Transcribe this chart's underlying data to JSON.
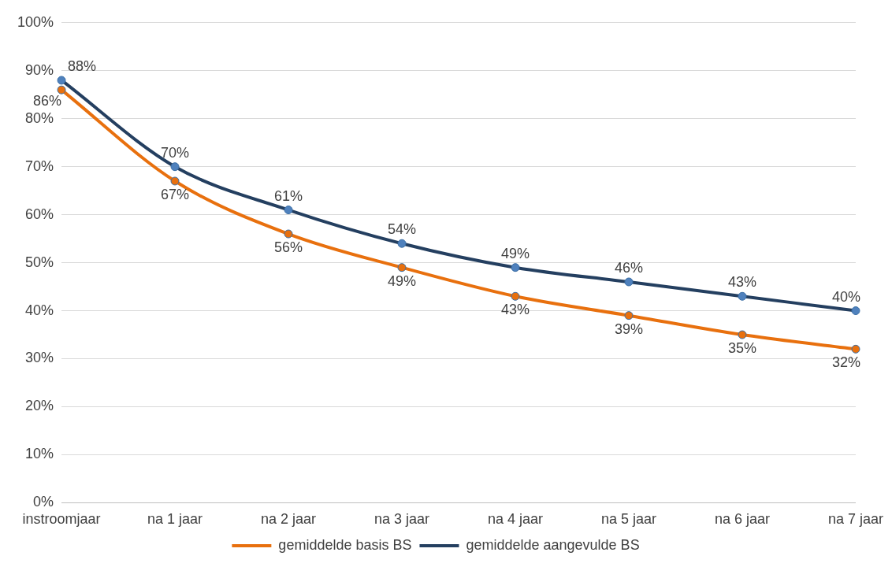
{
  "chart_data": {
    "type": "line",
    "categories": [
      "instroomjaar",
      "na 1 jaar",
      "na 2 jaar",
      "na 3 jaar",
      "na 4 jaar",
      "na 5 jaar",
      "na 6 jaar",
      "na 7 jaar"
    ],
    "series": [
      {
        "name": "gemiddelde basis BS",
        "color": "#e8700e",
        "values": [
          86,
          67,
          56,
          49,
          43,
          39,
          35,
          32
        ],
        "value_labels": [
          "86%",
          "67%",
          "56%",
          "49%",
          "43%",
          "39%",
          "35%",
          "32%"
        ]
      },
      {
        "name": "gemiddelde aangevulde BS",
        "color": "#243f60",
        "values": [
          88,
          70,
          61,
          54,
          49,
          46,
          43,
          40
        ],
        "value_labels": [
          "88%",
          "70%",
          "61%",
          "54%",
          "49%",
          "46%",
          "43%",
          "40%"
        ]
      }
    ],
    "ylim": [
      0,
      100
    ],
    "yticks": [
      {
        "value": 0,
        "label": "0%"
      },
      {
        "value": 10,
        "label": "10%"
      },
      {
        "value": 20,
        "label": "20%"
      },
      {
        "value": 30,
        "label": "30%"
      },
      {
        "value": 40,
        "label": "40%"
      },
      {
        "value": 50,
        "label": "50%"
      },
      {
        "value": 60,
        "label": "60%"
      },
      {
        "value": 70,
        "label": "70%"
      },
      {
        "value": 80,
        "label": "80%"
      },
      {
        "value": 90,
        "label": "90%"
      },
      {
        "value": 100,
        "label": "100%"
      }
    ],
    "grid": "y",
    "legend": "bottom",
    "marker": "circle",
    "line_style": "solid"
  }
}
